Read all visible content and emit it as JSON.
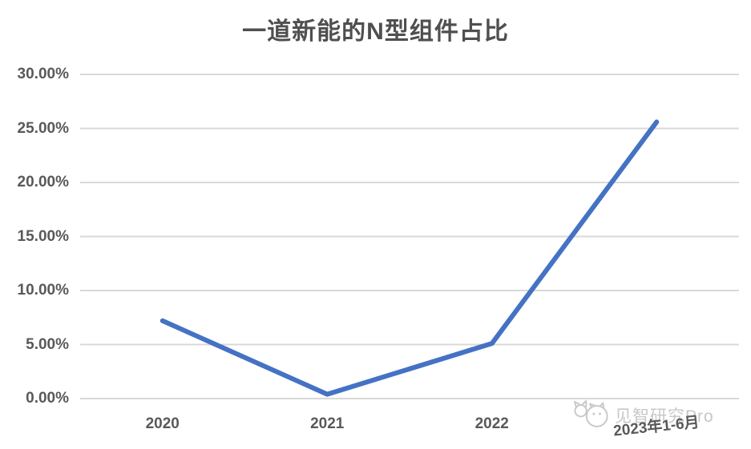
{
  "chart_data": {
    "type": "line",
    "title": "一道新能的N型组件占比",
    "categories": [
      "2020",
      "2021",
      "2022",
      "2023年1-6月"
    ],
    "values": [
      7.2,
      0.4,
      5.1,
      25.6
    ],
    "unit": "%",
    "ylim": [
      0,
      30
    ],
    "ytick_step": 5,
    "ytick_labels": [
      "0.00%",
      "5.00%",
      "10.00%",
      "15.00%",
      "20.00%",
      "25.00%",
      "30.00%"
    ],
    "xlabel": "",
    "ylabel": "",
    "grid": true,
    "legend": "none",
    "line_color": "#4472C4"
  },
  "watermark": {
    "text": "见智研究Pro",
    "icon": "mascot-face-icon"
  },
  "colors": {
    "line": "#4472C4",
    "gridline": "#D9D9D9",
    "axis_label": "#595959",
    "title": "#4F4F4F",
    "watermark": "#C8C8C8",
    "background": "#FFFFFF"
  }
}
